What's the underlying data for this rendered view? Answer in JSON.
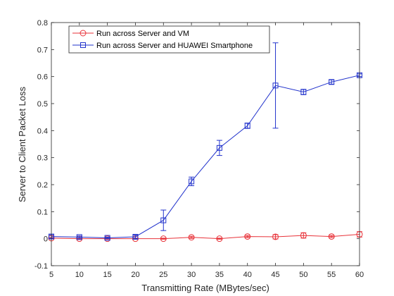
{
  "chart_data": {
    "type": "line",
    "xlabel": "Transmitting Rate (MBytes/sec)",
    "ylabel": "Server to Client Packet Loss",
    "xlim": [
      5,
      60
    ],
    "ylim": [
      -0.1,
      0.8
    ],
    "xticks": [
      5,
      10,
      15,
      20,
      25,
      30,
      35,
      40,
      45,
      50,
      55,
      60
    ],
    "yticks": [
      -0.1,
      0,
      0.1,
      0.2,
      0.3,
      0.4,
      0.5,
      0.6,
      0.7,
      0.8
    ],
    "ytick_labels": [
      "-0.1",
      "0",
      "0.1",
      "0.2",
      "0.3",
      "0.4",
      "0.5",
      "0.6",
      "0.7",
      "0.8"
    ],
    "grid": false,
    "legend_position": "top-left",
    "x": [
      5,
      10,
      15,
      20,
      25,
      30,
      35,
      40,
      45,
      50,
      55,
      60
    ],
    "series": [
      {
        "name": "Run across Server and VM",
        "color": "#e8333a",
        "marker": "circle",
        "values": [
          0.002,
          0.0,
          0.0,
          0.0,
          0.0,
          0.005,
          0.0,
          0.008,
          0.007,
          0.012,
          0.008,
          0.016
        ],
        "errors": [
          0.002,
          0.002,
          0.002,
          0.002,
          0.002,
          0.004,
          0.002,
          0.004,
          0.008,
          0.01,
          0.004,
          0.01
        ]
      },
      {
        "name": "Run across Server and HUAWEI Smartphone",
        "color": "#2233cc",
        "marker": "square",
        "values": [
          0.008,
          0.006,
          0.003,
          0.007,
          0.068,
          0.212,
          0.336,
          0.418,
          0.567,
          0.543,
          0.58,
          0.605
        ],
        "errors": [
          0.006,
          0.004,
          0.003,
          0.006,
          0.038,
          0.016,
          0.028,
          0.01,
          0.158,
          0.01,
          0.008,
          0.005
        ]
      }
    ]
  }
}
